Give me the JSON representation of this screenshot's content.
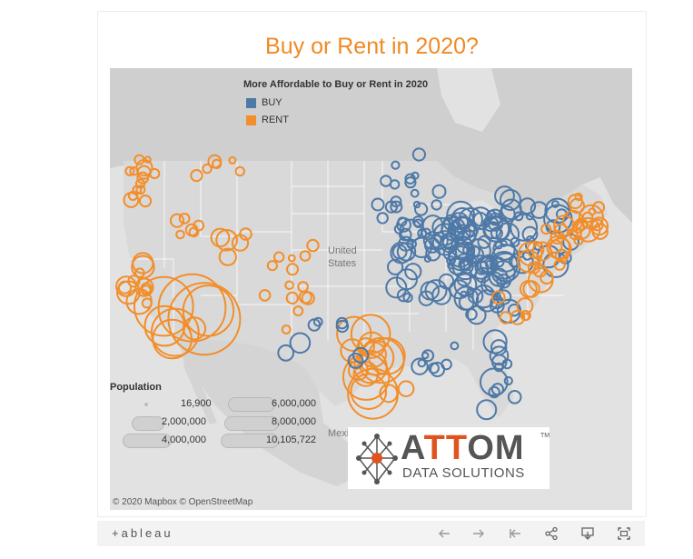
{
  "title": "Buy or Rent in 2020?",
  "legend": {
    "title": "More Affordable to Buy or Rent in 2020",
    "items": [
      {
        "label": "BUY",
        "color": "#4e79a7"
      },
      {
        "label": "RENT",
        "color": "#f28e2b"
      }
    ]
  },
  "map_labels": {
    "us": "United\nStates",
    "us_line1": "United",
    "us_line2": "States",
    "mexico": "Mexico"
  },
  "population": {
    "title": "Population",
    "labels": [
      "16,900",
      "2,000,000",
      "4,000,000",
      "6,000,000",
      "8,000,000",
      "10,105,722"
    ]
  },
  "logo": {
    "word_a": "A",
    "word_tt": "TT",
    "word_om": "OM",
    "sub": "DATA SOLUTIONS",
    "tm": "TM"
  },
  "attribution": "© 2020 Mapbox  © OpenStreetMap",
  "toolbar": {
    "brand": "+ableau",
    "buttons": [
      "undo-icon",
      "redo-icon",
      "revert-icon",
      "share-icon",
      "download-icon",
      "fullscreen-icon"
    ]
  }
}
